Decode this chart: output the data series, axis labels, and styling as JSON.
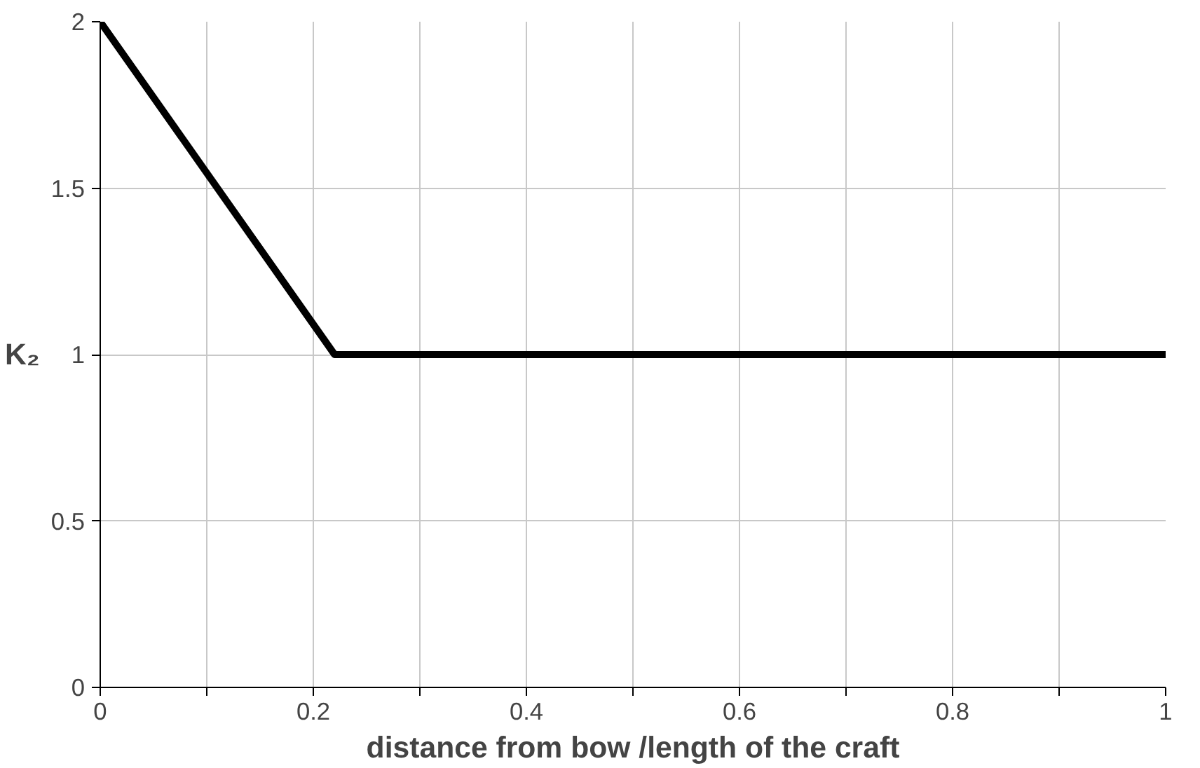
{
  "chart_data": {
    "type": "line",
    "xlabel": "distance from bow /length of the craft",
    "ylabel": "K₂",
    "x": [
      0,
      0.22,
      1
    ],
    "series": [
      {
        "color": "#000000",
        "values": [
          2,
          1,
          1
        ]
      }
    ],
    "xlim": [
      0,
      1
    ],
    "ylim": [
      0,
      2
    ],
    "xticks": [
      0,
      {
        "value": 0.1,
        "label": null
      },
      0.2,
      {
        "value": 0.3,
        "label": null
      },
      0.4,
      {
        "value": 0.5,
        "label": null
      },
      0.6,
      {
        "value": 0.7,
        "label": null
      },
      0.8,
      {
        "value": 0.9,
        "label": null
      },
      1
    ],
    "yticks": [
      0,
      0.5,
      1,
      1.5,
      2
    ],
    "grid": true,
    "marker": "none",
    "line_style": "solid"
  }
}
